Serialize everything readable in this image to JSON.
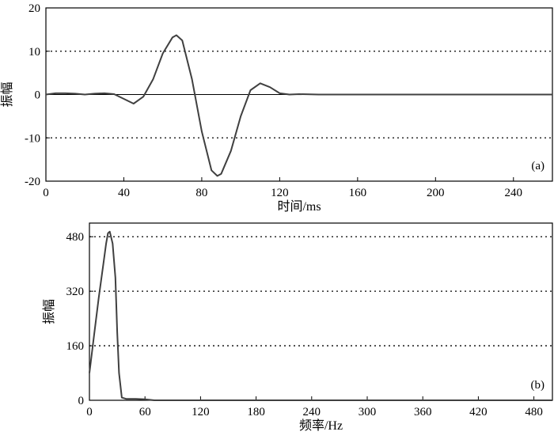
{
  "chart_data": [
    {
      "type": "line",
      "panel_label": "(a)",
      "xlabel": "时间/ms",
      "ylabel": "振幅",
      "xlim": [
        0,
        260
      ],
      "ylim": [
        -20,
        20
      ],
      "xticks": [
        0,
        40,
        80,
        120,
        160,
        200,
        240
      ],
      "yticks": [
        -20,
        -10,
        0,
        10,
        20
      ],
      "dotted_gridlines_y": [
        -10,
        10
      ],
      "zero_line": true,
      "series": [
        {
          "color": "#404040",
          "x": [
            0,
            5,
            10,
            15,
            20,
            25,
            30,
            35,
            40,
            45,
            50,
            55,
            60,
            65,
            67,
            70,
            75,
            80,
            85,
            88,
            90,
            95,
            100,
            105,
            110,
            115,
            120,
            125,
            130,
            140,
            150,
            160,
            180,
            200,
            220,
            240,
            260
          ],
          "y": [
            0,
            0.3,
            0.3,
            0.2,
            0,
            0.2,
            0.3,
            0.1,
            -1,
            -2.1,
            -0.5,
            3.5,
            9.5,
            13.2,
            13.7,
            12.5,
            3.5,
            -8.5,
            -17.5,
            -18.8,
            -18.3,
            -13,
            -5,
            1,
            2.6,
            1.7,
            0.3,
            0,
            0.1,
            0,
            0,
            0,
            0,
            0,
            0,
            0,
            0
          ]
        }
      ]
    },
    {
      "type": "line",
      "panel_label": "(b)",
      "xlabel": "频率/Hz",
      "ylabel": "振幅",
      "xlim": [
        0,
        500
      ],
      "ylim": [
        0,
        520
      ],
      "xticks": [
        0,
        60,
        120,
        180,
        240,
        300,
        360,
        420,
        480
      ],
      "yticks": [
        0,
        160,
        320,
        480
      ],
      "dotted_gridlines_y": [
        160,
        320,
        480
      ],
      "series": [
        {
          "color": "#404040",
          "x": [
            0,
            5,
            10,
            15,
            18,
            20,
            22,
            25,
            28,
            30,
            32,
            35,
            40,
            50,
            60,
            70,
            80,
            100,
            150,
            200,
            300,
            400,
            500
          ],
          "y": [
            80,
            190,
            300,
            400,
            460,
            490,
            495,
            460,
            360,
            200,
            80,
            8,
            4,
            4,
            3,
            0,
            0,
            0,
            0,
            0,
            0,
            0,
            0
          ]
        }
      ]
    }
  ]
}
